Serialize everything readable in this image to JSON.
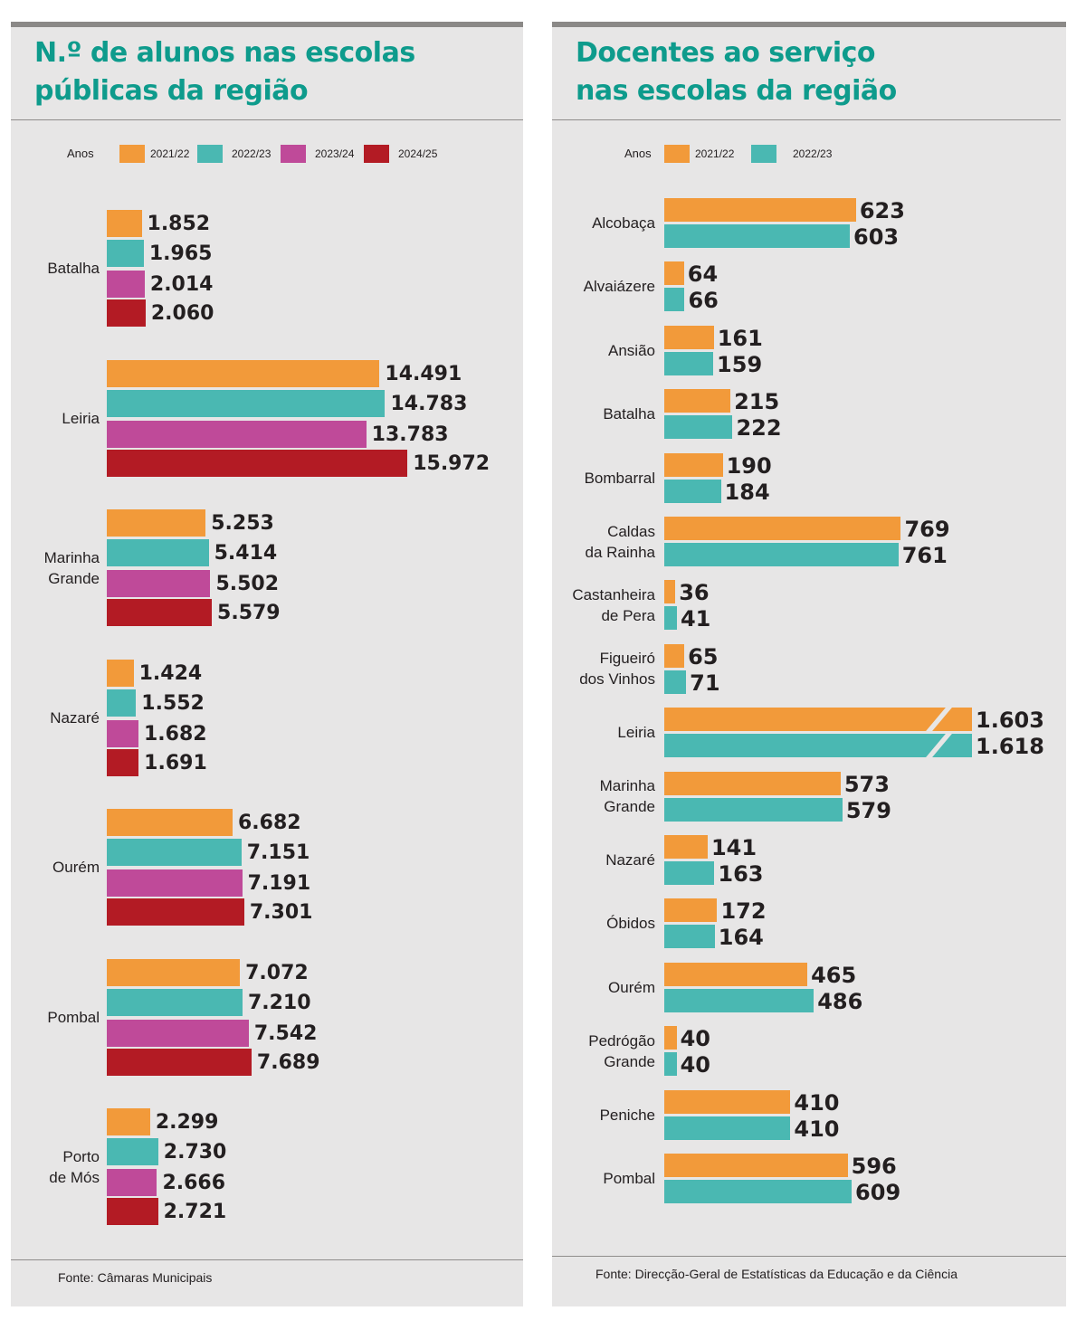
{
  "colors": {
    "orange": "#f29a3a",
    "teal": "#4ab8b2",
    "magenta": "#bf4a99",
    "red": "#b31b24",
    "title": "#0e9b8c",
    "panel": "#e7e6e6"
  },
  "chart_data": [
    {
      "type": "bar",
      "orientation": "horizontal",
      "title_lines": [
        "N.º de alunos nas escolas",
        "públicas da região"
      ],
      "legend_title": "Anos",
      "categories": [
        "Batalha",
        "Leiria",
        "Marinha\nGrande",
        "Nazaré",
        "Ourém",
        "Pombal",
        "Porto\nde Mós"
      ],
      "series": [
        {
          "name": "2021/22",
          "color": "#f29a3a",
          "values": [
            1852,
            14491,
            5253,
            1424,
            6682,
            7072,
            2299
          ]
        },
        {
          "name": "2022/23",
          "color": "#4ab8b2",
          "values": [
            1965,
            14783,
            5414,
            1552,
            7151,
            7210,
            2730
          ]
        },
        {
          "name": "2023/24",
          "color": "#bf4a99",
          "values": [
            2014,
            13783,
            5502,
            1682,
            7191,
            7542,
            2666
          ]
        },
        {
          "name": "2024/25",
          "color": "#b31b24",
          "values": [
            2060,
            15972,
            5579,
            1691,
            7301,
            7689,
            2721
          ]
        }
      ],
      "value_labels": [
        [
          "1.852",
          "14.491",
          "5.253",
          "1.424",
          "6.682",
          "7.072",
          "2.299"
        ],
        [
          "1.965",
          "14.783",
          "5.414",
          "1.552",
          "7.151",
          "7.210",
          "2.730"
        ],
        [
          "2.014",
          "13.783",
          "5.502",
          "1.682",
          "7.191",
          "7.542",
          "2.666"
        ],
        [
          "2.060",
          "15.972",
          "5.579",
          "1.691",
          "7.301",
          "7.689",
          "2.721"
        ]
      ],
      "source": "Fonte: Câmaras Municipais"
    },
    {
      "type": "bar",
      "orientation": "horizontal",
      "title_lines": [
        "Docentes ao serviço",
        "nas escolas da região"
      ],
      "legend_title": "Anos",
      "categories": [
        "Alcobaça",
        "Alvaiázere",
        "Ansião",
        "Batalha",
        "Bombarral",
        "Caldas\nda Rainha",
        "Castanheira\nde Pera",
        "Figueiró\ndos Vinhos",
        "Leiria",
        "Marinha\nGrande",
        "Nazaré",
        "Óbidos",
        "Ourém",
        "Pedrógão\nGrande",
        "Peniche",
        "Pombal"
      ],
      "series": [
        {
          "name": "2021/22",
          "color": "#f29a3a",
          "values": [
            623,
            64,
            161,
            215,
            190,
            769,
            36,
            65,
            1603,
            573,
            141,
            172,
            465,
            40,
            410,
            596
          ]
        },
        {
          "name": "2022/23",
          "color": "#4ab8b2",
          "values": [
            603,
            66,
            159,
            222,
            184,
            761,
            41,
            71,
            1618,
            579,
            163,
            164,
            486,
            40,
            410,
            609
          ]
        }
      ],
      "value_labels": [
        [
          "623",
          "64",
          "161",
          "215",
          "190",
          "769",
          "36",
          "65",
          "1.603",
          "573",
          "141",
          "172",
          "465",
          "40",
          "410",
          "596"
        ],
        [
          "603",
          "66",
          "159",
          "222",
          "184",
          "761",
          "41",
          "71",
          "1.618",
          "579",
          "163",
          "164",
          "486",
          "40",
          "410",
          "609"
        ]
      ],
      "broken_axis_categories": [
        "Leiria"
      ],
      "source": "Fonte: Direcção-Geral de Estatísticas da Educação e da Ciência"
    }
  ]
}
